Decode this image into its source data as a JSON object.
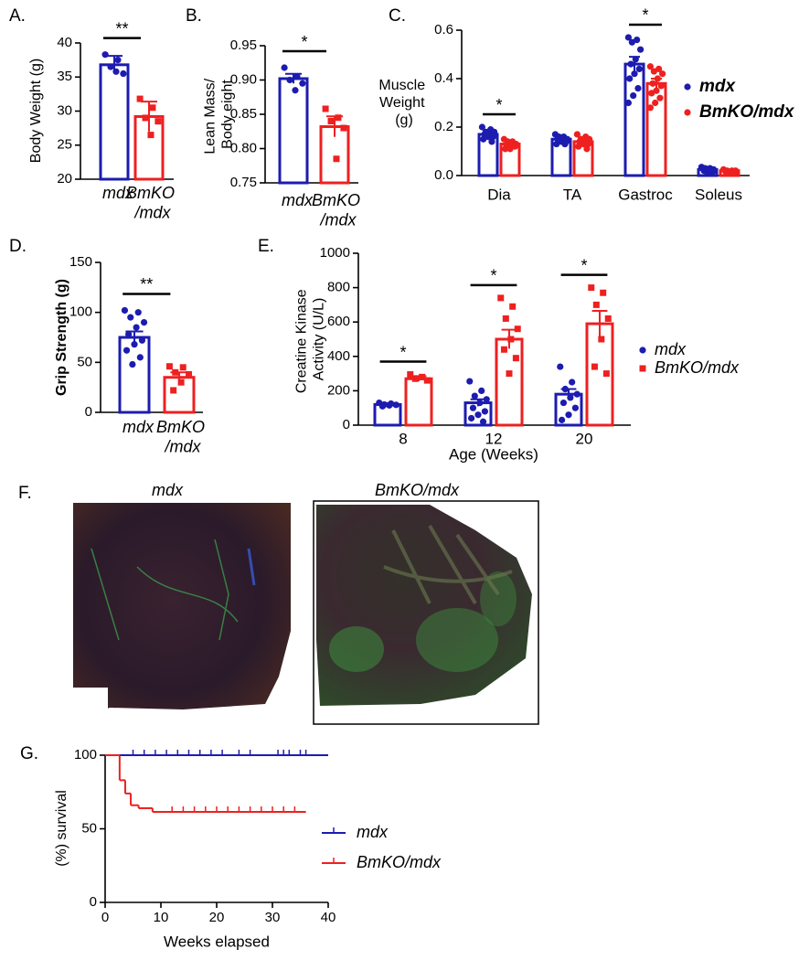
{
  "chart_data": [
    {
      "type": "bar",
      "panel": "A.",
      "ylabel": "Body Weight (g)",
      "categories": [
        "mdx",
        "BmKO\n/mdx"
      ],
      "values": [
        36.8,
        29.2
      ],
      "errors": [
        1.3,
        2.2
      ],
      "points": [
        [
          38.3,
          37.5,
          36.5,
          35.5,
          35.8
        ],
        [
          31.8,
          30.5,
          29,
          28.5,
          26.5
        ]
      ],
      "colors": [
        "#1c1cb0",
        "#ee2020"
      ],
      "markers": [
        "circle",
        "square"
      ],
      "significance": "**",
      "ylim": [
        20,
        40
      ],
      "yticks": [
        20,
        25,
        30,
        35,
        40
      ]
    },
    {
      "type": "bar",
      "panel": "B.",
      "ylabel": "Lean Mass/\nBody eight",
      "categories": [
        "mdx",
        "BmKO\n/mdx"
      ],
      "values": [
        0.902,
        0.832
      ],
      "errors": [
        0.007,
        0.015
      ],
      "points": [
        [
          0.918,
          0.905,
          0.9,
          0.895,
          0.885
        ],
        [
          0.858,
          0.845,
          0.84,
          0.83,
          0.785
        ]
      ],
      "colors": [
        "#1c1cb0",
        "#ee2020"
      ],
      "markers": [
        "circle",
        "square"
      ],
      "significance": "*",
      "ylim": [
        0.75,
        0.95
      ],
      "yticks": [
        0.75,
        {
          "value": 0.8,
          "label": "0.80"
        },
        0.85,
        {
          "value": 0.9,
          "label": "0.90"
        },
        0.95
      ]
    },
    {
      "type": "bar",
      "panel": "C.",
      "ylabel": "Muscle\nWeight\n(g)",
      "categories": [
        "Dia",
        "TA",
        "Gastroc",
        "Soleus"
      ],
      "series": [
        {
          "name": "mdx",
          "color": "#1c1cb0",
          "marker": "circle",
          "values": [
            0.17,
            0.15,
            0.46,
            0.025
          ],
          "errors": [
            0.01,
            0.006,
            0.03,
            0.003
          ],
          "points": [
            [
              0.2,
              0.19,
              0.18,
              0.18,
              0.17,
              0.17,
              0.16,
              0.16,
              0.15,
              0.14
            ],
            [
              0.17,
              0.16,
              0.16,
              0.15,
              0.15,
              0.15,
              0.14,
              0.14,
              0.13,
              0.13
            ],
            [
              0.57,
              0.56,
              0.55,
              0.52,
              0.48,
              0.46,
              0.44,
              0.42,
              0.4,
              0.36,
              0.33,
              0.3
            ],
            [
              0.035,
              0.03,
              0.03,
              0.025,
              0.02,
              0.02,
              0.015,
              0.01
            ]
          ]
        },
        {
          "name": "BmKO/mdx",
          "color": "#ee2020",
          "marker": "circle",
          "values": [
            0.13,
            0.14,
            0.38,
            0.02
          ],
          "errors": [
            0.008,
            0.006,
            0.02,
            0.002
          ],
          "points": [
            [
              0.15,
              0.14,
              0.14,
              0.13,
              0.13,
              0.12,
              0.12,
              0.11,
              0.11
            ],
            [
              0.17,
              0.16,
              0.15,
              0.15,
              0.14,
              0.14,
              0.13,
              0.13,
              0.12,
              0.11
            ],
            [
              0.45,
              0.44,
              0.43,
              0.42,
              0.4,
              0.38,
              0.37,
              0.35,
              0.34,
              0.32,
              0.3,
              0.28
            ],
            [
              0.025,
              0.02,
              0.02,
              0.02,
              0.015,
              0.015,
              0.01
            ]
          ]
        }
      ],
      "significance": [
        "*",
        null,
        "*",
        null
      ],
      "ylim": [
        0,
        0.6
      ],
      "yticks": [
        {
          "value": 0,
          "label": "0.0"
        },
        0.2,
        0.4,
        0.6
      ]
    },
    {
      "type": "bar",
      "panel": "D.",
      "ylabel": "Grip Strength (g)",
      "categories": [
        "mdx",
        "BmKO\n/mdx"
      ],
      "values": [
        75,
        35
      ],
      "errors": [
        6,
        5
      ],
      "points": [
        [
          102,
          100,
          95,
          90,
          85,
          78,
          72,
          68,
          62,
          55,
          48
        ],
        [
          46,
          45,
          40,
          38,
          30,
          22
        ]
      ],
      "colors": [
        "#1c1cb0",
        "#ee2020"
      ],
      "markers": [
        "circle",
        "square"
      ],
      "significance": "**",
      "ylim": [
        0,
        150
      ],
      "yticks": [
        0,
        50,
        100,
        150
      ]
    },
    {
      "type": "bar",
      "panel": "E.",
      "ylabel": "Creatine Kinase\nActivity (U/L)",
      "xlabel": "Age (Weeks)",
      "categories": [
        "8",
        "12",
        "20"
      ],
      "series": [
        {
          "name": "mdx",
          "color": "#1c1cb0",
          "marker": "circle",
          "values": [
            120,
            130,
            180
          ],
          "errors": [
            8,
            20,
            30
          ],
          "points": [
            [
              130,
              125,
              120,
              118,
              115,
              110
            ],
            [
              255,
              200,
              170,
              150,
              130,
              100,
              80,
              60,
              40,
              20
            ],
            [
              340,
              250,
              210,
              180,
              160,
              130,
              100,
              60,
              30
            ]
          ]
        },
        {
          "name": "BmKO/mdx",
          "color": "#ee2020",
          "marker": "square",
          "values": [
            270,
            500,
            590
          ],
          "errors": [
            15,
            55,
            75
          ],
          "points": [
            [
              295,
              280,
              270,
              260
            ],
            [
              740,
              690,
              620,
              560,
              500,
              440,
              390,
              300
            ],
            [
              800,
              770,
              700,
              620,
              500,
              340,
              300
            ]
          ]
        }
      ],
      "significance": [
        "*",
        "*",
        "*"
      ],
      "ylim": [
        0,
        1000
      ],
      "yticks": [
        0,
        200,
        400,
        600,
        800,
        1000
      ]
    },
    {
      "type": "line",
      "panel": "G.",
      "xlabel": "Weeks elapsed",
      "ylabel": "(%) survival",
      "series": [
        {
          "name": "mdx",
          "color": "#1c1cb0",
          "x": [
            0,
            40
          ],
          "values": [
            100,
            100
          ],
          "censored_x": [
            5,
            7,
            9,
            11,
            13,
            15,
            17,
            19,
            21,
            24,
            26,
            31,
            32,
            33,
            35,
            36
          ]
        },
        {
          "name": "BmKO/mdx",
          "color": "#ee2020",
          "x": [
            0,
            2.6,
            3.6,
            4.6,
            6,
            8.5,
            36
          ],
          "values": [
            100,
            83,
            74,
            66,
            64,
            61.5,
            61.5
          ],
          "censored_x": [
            12,
            14,
            16,
            18,
            20,
            22,
            24,
            26,
            28,
            30,
            32,
            34
          ]
        }
      ],
      "xlim": [
        0,
        40
      ],
      "xticks": [
        0,
        10,
        20,
        30,
        40
      ],
      "ylim": [
        0,
        100
      ],
      "yticks": [
        0,
        50,
        100
      ]
    }
  ],
  "figure_f": {
    "panel": "F.",
    "images": [
      {
        "label": "mdx"
      },
      {
        "label": "BmKO/mdx"
      }
    ]
  }
}
